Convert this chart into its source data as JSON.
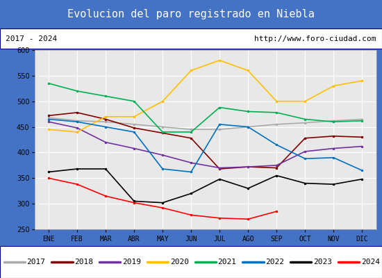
{
  "title": "Evolucion del paro registrado en Niebla",
  "title_bg": "#4472c4",
  "subtitle_left": "2017 - 2024",
  "subtitle_right": "http://www.foro-ciudad.com",
  "xlabel_ticks": [
    "ENE",
    "FEB",
    "MAR",
    "ABR",
    "MAY",
    "JUN",
    "JUL",
    "AGO",
    "SEP",
    "OCT",
    "NOV",
    "DIC"
  ],
  "ylim": [
    250,
    600
  ],
  "yticks": [
    250,
    300,
    350,
    400,
    450,
    500,
    550,
    600
  ],
  "series": {
    "2017": {
      "color": "#aaaaaa",
      "values": [
        468,
        462,
        460,
        455,
        450,
        445,
        445,
        450,
        455,
        458,
        462,
        465
      ]
    },
    "2018": {
      "color": "#7f0000",
      "values": [
        472,
        478,
        465,
        448,
        438,
        428,
        368,
        372,
        370,
        428,
        432,
        430
      ]
    },
    "2019": {
      "color": "#7030a0",
      "values": [
        460,
        448,
        420,
        408,
        395,
        380,
        370,
        372,
        375,
        402,
        408,
        412
      ]
    },
    "2020": {
      "color": "#ffc000",
      "values": [
        445,
        440,
        470,
        470,
        500,
        560,
        580,
        560,
        500,
        500,
        530,
        540
      ]
    },
    "2021": {
      "color": "#00b050",
      "values": [
        535,
        520,
        510,
        500,
        440,
        440,
        488,
        480,
        478,
        465,
        460,
        462
      ]
    },
    "2022": {
      "color": "#0070c0",
      "values": [
        465,
        460,
        450,
        440,
        368,
        362,
        455,
        450,
        415,
        388,
        390,
        365
      ]
    },
    "2023": {
      "color": "#000000",
      "values": [
        362,
        368,
        368,
        305,
        302,
        320,
        348,
        330,
        355,
        340,
        338,
        348
      ]
    },
    "2024": {
      "color": "#ff0000",
      "values": [
        350,
        338,
        315,
        302,
        292,
        278,
        272,
        270,
        285,
        null,
        null,
        null
      ]
    }
  }
}
